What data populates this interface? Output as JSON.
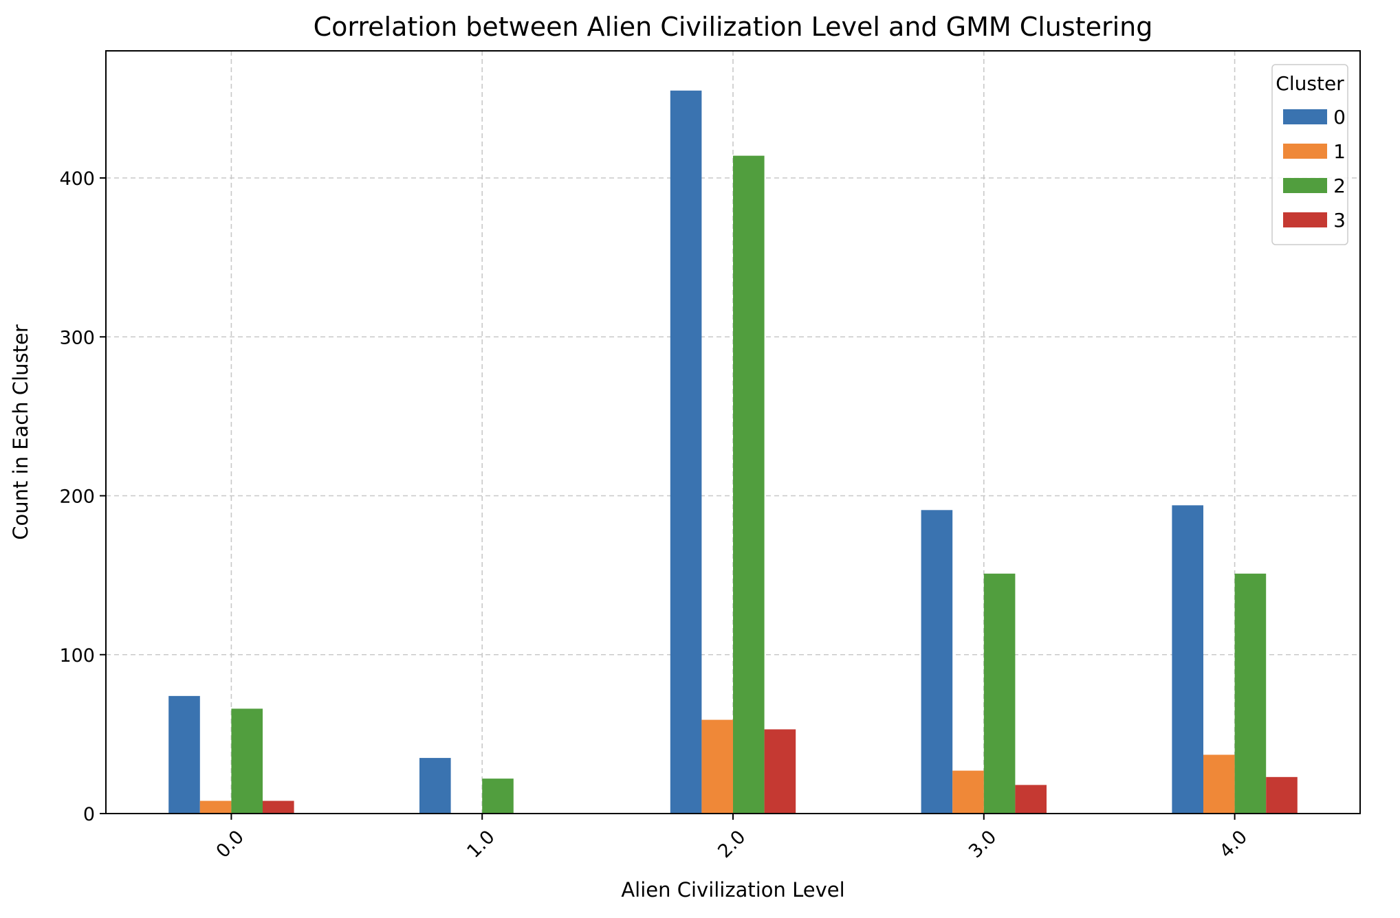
{
  "chart_data": {
    "type": "bar",
    "title": "Correlation between Alien Civilization Level and GMM Clustering",
    "xlabel": "Alien Civilization Level",
    "ylabel": "Count in Each Cluster",
    "categories": [
      "0.0",
      "1.0",
      "2.0",
      "3.0",
      "4.0"
    ],
    "ylim": [
      0,
      480
    ],
    "yticks": [
      0,
      100,
      200,
      300,
      400
    ],
    "grid": true,
    "legend": {
      "title": "Cluster",
      "placement": "top-right"
    },
    "series": [
      {
        "name": "0",
        "color": "#3a73b0",
        "values": [
          74,
          35,
          455,
          191,
          194
        ]
      },
      {
        "name": "1",
        "color": "#ef8838",
        "values": [
          8,
          0,
          59,
          27,
          37
        ]
      },
      {
        "name": "2",
        "color": "#519e3e",
        "values": [
          66,
          22,
          414,
          151,
          151
        ]
      },
      {
        "name": "3",
        "color": "#c53932",
        "values": [
          8,
          0,
          53,
          18,
          23
        ]
      }
    ]
  }
}
